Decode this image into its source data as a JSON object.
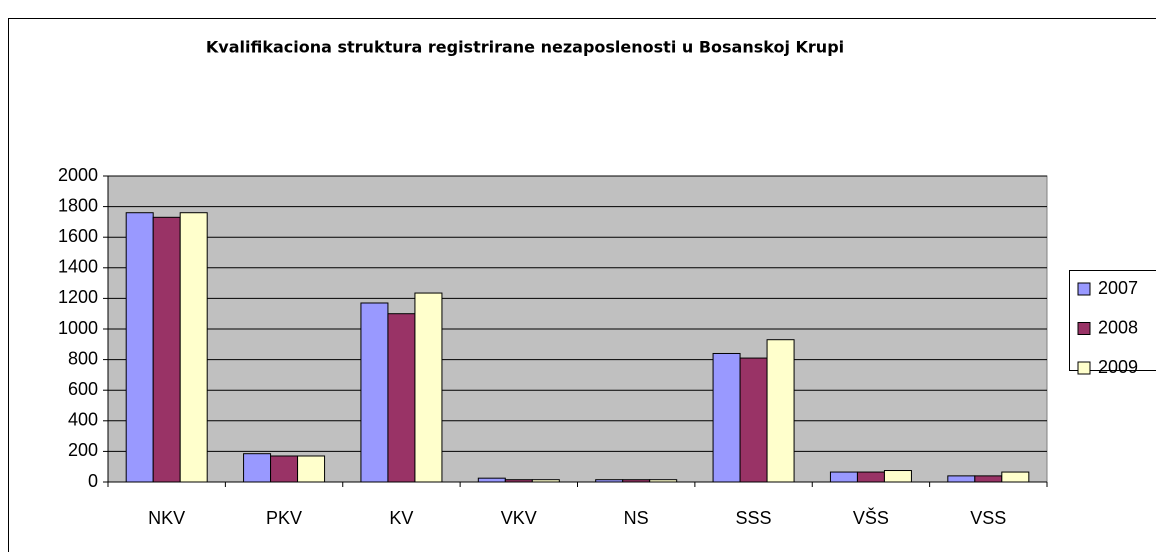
{
  "chart_data": {
    "type": "bar",
    "title": "Kvalifikaciona struktura registrirane nezaposlenosti u Bosanskoj Krupi",
    "categories": [
      "NKV",
      "PKV",
      "KV",
      "VKV",
      "NS",
      "SSS",
      "VŠS",
      "VSS"
    ],
    "series": [
      {
        "name": "2007",
        "color": "#9999ff",
        "values": [
          1760,
          185,
          1170,
          25,
          15,
          840,
          65,
          40
        ]
      },
      {
        "name": "2008",
        "color": "#993366",
        "values": [
          1730,
          170,
          1100,
          15,
          15,
          810,
          65,
          40
        ]
      },
      {
        "name": "2009",
        "color": "#ffffcc",
        "values": [
          1760,
          170,
          1235,
          15,
          15,
          930,
          75,
          65
        ]
      }
    ],
    "ylim": [
      0,
      2000
    ],
    "yticks": [
      0,
      200,
      400,
      600,
      800,
      1000,
      1200,
      1400,
      1600,
      1800,
      2000
    ],
    "grid": true,
    "legend": "right"
  }
}
